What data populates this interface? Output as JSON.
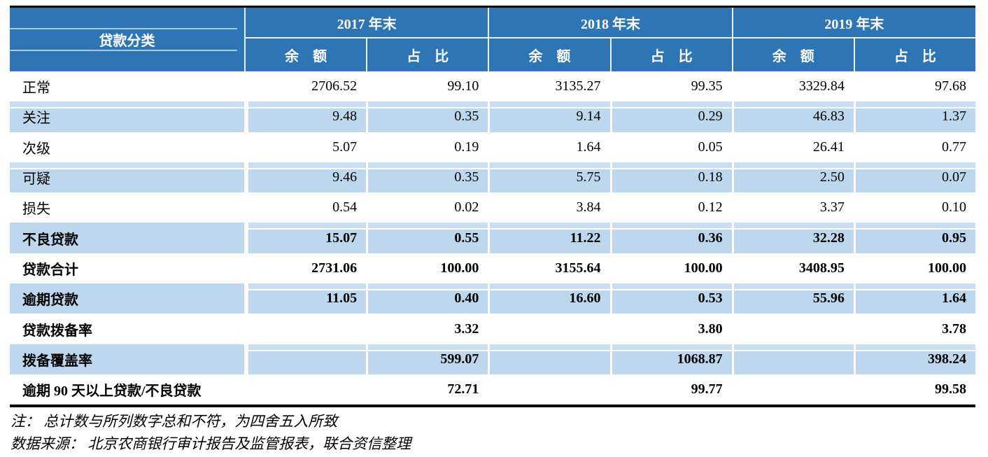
{
  "header": {
    "corner": "贷款分类",
    "years": [
      "2017 年末",
      "2018 年末",
      "2019 年末"
    ],
    "balance_label": "余　额",
    "ratio_label": "占　比"
  },
  "rows": [
    {
      "label": "正常",
      "values": [
        "2706.52",
        "99.10",
        "3135.27",
        "99.35",
        "3329.84",
        "97.68"
      ]
    },
    {
      "label": "关注",
      "values": [
        "9.48",
        "0.35",
        "9.14",
        "0.29",
        "46.83",
        "1.37"
      ]
    },
    {
      "label": "次级",
      "values": [
        "5.07",
        "0.19",
        "1.64",
        "0.05",
        "26.41",
        "0.77"
      ]
    },
    {
      "label": "可疑",
      "values": [
        "9.46",
        "0.35",
        "5.75",
        "0.18",
        "2.50",
        "0.07"
      ]
    },
    {
      "label": "损失",
      "values": [
        "0.54",
        "0.02",
        "3.84",
        "0.12",
        "3.37",
        "0.10"
      ]
    },
    {
      "label": "不良贷款",
      "values": [
        "15.07",
        "0.55",
        "11.22",
        "0.36",
        "32.28",
        "0.95"
      ]
    },
    {
      "label": "贷款合计",
      "values": [
        "2731.06",
        "100.00",
        "3155.64",
        "100.00",
        "3408.95",
        "100.00"
      ]
    },
    {
      "label": "逾期贷款",
      "values": [
        "11.05",
        "0.40",
        "16.60",
        "0.53",
        "55.96",
        "1.64"
      ]
    },
    {
      "label": "贷款拨备率",
      "values": [
        "",
        "3.32",
        "",
        "3.80",
        "",
        "3.78"
      ]
    },
    {
      "label": "拨备覆盖率",
      "values": [
        "",
        "599.07",
        "",
        "1068.87",
        "",
        "398.24"
      ]
    },
    {
      "label": "逾期 90 天以上贷款/不良贷款",
      "values": [
        "",
        "72.71",
        "",
        "99.77",
        "",
        "99.58"
      ]
    }
  ],
  "notes": [
    "注： 总计数与所列数字总和不符，为四舍五入所致",
    "数据来源： 北京农商银行审计报告及监管报表，联合资信整理"
  ],
  "colors": {
    "header_blue": "#2E75B6",
    "stripe_blue": "#BDD7EE"
  }
}
